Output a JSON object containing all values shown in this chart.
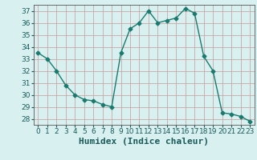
{
  "x": [
    0,
    1,
    2,
    3,
    4,
    5,
    6,
    7,
    8,
    9,
    10,
    11,
    12,
    13,
    14,
    15,
    16,
    17,
    18,
    19,
    20,
    21,
    22,
    23
  ],
  "y": [
    33.5,
    33.0,
    32.0,
    30.8,
    30.0,
    29.6,
    29.5,
    29.2,
    29.0,
    33.5,
    35.5,
    36.0,
    37.0,
    36.0,
    36.2,
    36.4,
    37.2,
    36.8,
    33.2,
    32.0,
    28.5,
    28.4,
    28.2,
    27.8
  ],
  "line_color": "#1a7a6e",
  "marker": "D",
  "markersize": 2.5,
  "bg_color": "#d8f0f0",
  "grid_color_major": "#c8a8a8",
  "grid_color_minor": "#dfc8c8",
  "xlabel": "Humidex (Indice chaleur)",
  "ylim": [
    27.5,
    37.5
  ],
  "xlim": [
    -0.5,
    23.5
  ],
  "yticks": [
    28,
    29,
    30,
    31,
    32,
    33,
    34,
    35,
    36,
    37
  ],
  "xticks": [
    0,
    1,
    2,
    3,
    4,
    5,
    6,
    7,
    8,
    9,
    10,
    11,
    12,
    13,
    14,
    15,
    16,
    17,
    18,
    19,
    20,
    21,
    22,
    23
  ],
  "tick_fontsize": 6.5,
  "xlabel_fontsize": 8
}
